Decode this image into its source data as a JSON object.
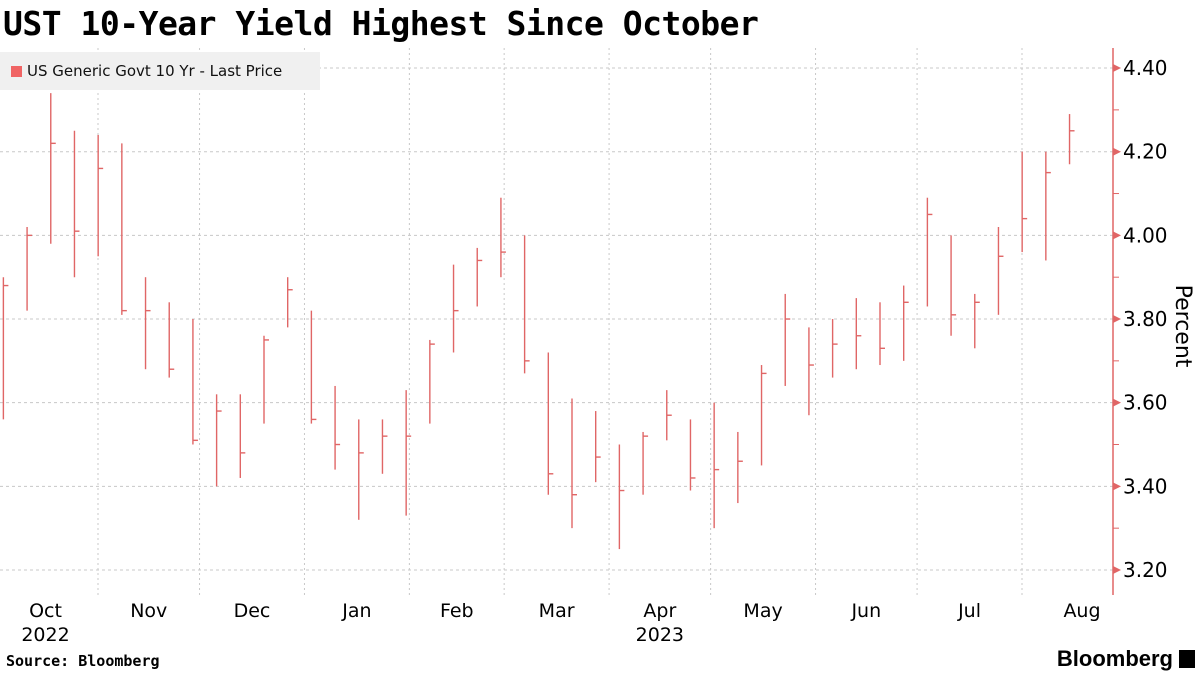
{
  "title": "UST 10-Year Yield Highest Since October",
  "source": "Source: Bloomberg",
  "logo": "Bloomberg",
  "colors": {
    "series": "#e06666",
    "grid": "#c8c8c8",
    "legend_bg": "#f0f0f0"
  },
  "chart_data": {
    "type": "ohlc-bar",
    "title": "UST 10-Year Yield Highest Since October",
    "legend": {
      "entries": [
        "US Generic Govt 10 Yr - Last Price"
      ],
      "placement": "top-left"
    },
    "ylabel": "Percent",
    "yaxis_side": "right",
    "ylim": [
      3.15,
      4.44
    ],
    "yticks": [
      "3.20",
      "3.40",
      "3.60",
      "3.80",
      "4.00",
      "4.20",
      "4.40"
    ],
    "xticks": [
      {
        "month": "Oct",
        "year": "2022"
      },
      {
        "month": "Nov",
        "year": ""
      },
      {
        "month": "Dec",
        "year": ""
      },
      {
        "month": "Jan",
        "year": ""
      },
      {
        "month": "Feb",
        "year": ""
      },
      {
        "month": "Mar",
        "year": ""
      },
      {
        "month": "Apr",
        "year": "2023"
      },
      {
        "month": "May",
        "year": ""
      },
      {
        "month": "Jun",
        "year": ""
      },
      {
        "month": "Jul",
        "year": ""
      },
      {
        "month": "Aug",
        "year": ""
      }
    ],
    "year_labels": [
      "2022",
      "2023"
    ],
    "grid": true,
    "series": [
      {
        "name": "US Generic Govt 10 Yr - Last Price",
        "columns": [
          "week_ending",
          "high",
          "low",
          "close"
        ],
        "data": [
          [
            "2022-10-07",
            3.9,
            3.56,
            3.88
          ],
          [
            "2022-10-14",
            4.02,
            3.82,
            4.0
          ],
          [
            "2022-10-21",
            4.34,
            3.98,
            4.22
          ],
          [
            "2022-10-28",
            4.25,
            3.9,
            4.01
          ],
          [
            "2022-11-04",
            4.24,
            3.95,
            4.16
          ],
          [
            "2022-11-11",
            4.22,
            3.81,
            3.82
          ],
          [
            "2022-11-18",
            3.9,
            3.68,
            3.82
          ],
          [
            "2022-11-25",
            3.84,
            3.66,
            3.68
          ],
          [
            "2022-12-02",
            3.8,
            3.5,
            3.51
          ],
          [
            "2022-12-09",
            3.62,
            3.4,
            3.58
          ],
          [
            "2022-12-16",
            3.62,
            3.42,
            3.48
          ],
          [
            "2022-12-23",
            3.76,
            3.55,
            3.75
          ],
          [
            "2022-12-30",
            3.9,
            3.78,
            3.87
          ],
          [
            "2023-01-06",
            3.82,
            3.55,
            3.56
          ],
          [
            "2023-01-13",
            3.64,
            3.44,
            3.5
          ],
          [
            "2023-01-20",
            3.56,
            3.32,
            3.48
          ],
          [
            "2023-01-27",
            3.56,
            3.43,
            3.52
          ],
          [
            "2023-02-03",
            3.63,
            3.33,
            3.52
          ],
          [
            "2023-02-10",
            3.75,
            3.55,
            3.74
          ],
          [
            "2023-02-17",
            3.93,
            3.72,
            3.82
          ],
          [
            "2023-02-24",
            3.97,
            3.83,
            3.94
          ],
          [
            "2023-03-03",
            4.09,
            3.9,
            3.96
          ],
          [
            "2023-03-10",
            4.0,
            3.67,
            3.7
          ],
          [
            "2023-03-17",
            3.72,
            3.38,
            3.43
          ],
          [
            "2023-03-24",
            3.61,
            3.3,
            3.38
          ],
          [
            "2023-03-31",
            3.58,
            3.41,
            3.47
          ],
          [
            "2023-04-07",
            3.5,
            3.25,
            3.39
          ],
          [
            "2023-04-14",
            3.53,
            3.38,
            3.52
          ],
          [
            "2023-04-21",
            3.63,
            3.51,
            3.57
          ],
          [
            "2023-04-28",
            3.56,
            3.39,
            3.42
          ],
          [
            "2023-05-05",
            3.6,
            3.3,
            3.44
          ],
          [
            "2023-05-12",
            3.53,
            3.36,
            3.46
          ],
          [
            "2023-05-19",
            3.69,
            3.45,
            3.67
          ],
          [
            "2023-05-26",
            3.86,
            3.64,
            3.8
          ],
          [
            "2023-06-02",
            3.78,
            3.57,
            3.69
          ],
          [
            "2023-06-09",
            3.8,
            3.66,
            3.74
          ],
          [
            "2023-06-16",
            3.85,
            3.68,
            3.76
          ],
          [
            "2023-06-23",
            3.84,
            3.69,
            3.73
          ],
          [
            "2023-06-30",
            3.88,
            3.7,
            3.84
          ],
          [
            "2023-07-07",
            4.09,
            3.83,
            4.05
          ],
          [
            "2023-07-14",
            4.0,
            3.76,
            3.81
          ],
          [
            "2023-07-21",
            3.86,
            3.73,
            3.84
          ],
          [
            "2023-07-28",
            4.02,
            3.81,
            3.95
          ],
          [
            "2023-08-04",
            4.2,
            3.96,
            4.04
          ],
          [
            "2023-08-11",
            4.2,
            3.94,
            4.15
          ],
          [
            "2023-08-18",
            4.29,
            4.17,
            4.25
          ]
        ]
      }
    ]
  }
}
